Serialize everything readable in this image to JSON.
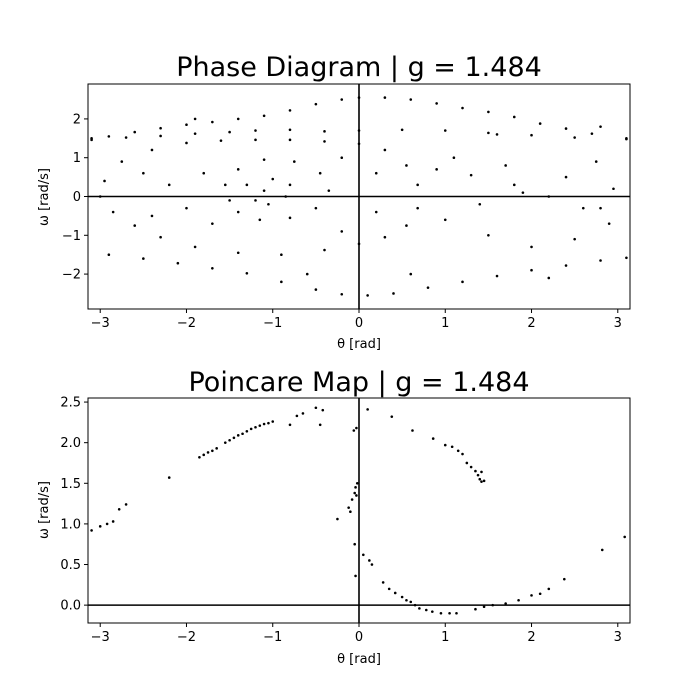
{
  "chart_data": [
    {
      "type": "scatter",
      "title": "Phase Diagram | g = 1.484",
      "xlabel": "θ [rad]",
      "ylabel": "ω [rad/s]",
      "xlim": [
        -3.1416,
        3.1416
      ],
      "ylim": [
        -2.9,
        2.9
      ],
      "x_ticks": [
        -3,
        -2,
        -1,
        0,
        1,
        2,
        3
      ],
      "x_tick_labels": [
        "−3",
        "−2",
        "−1",
        "0",
        "1",
        "2",
        "3"
      ],
      "y_ticks": [
        -2,
        -1,
        0,
        1,
        2
      ],
      "y_tick_labels": [
        "−2",
        "−1",
        "0",
        "1",
        "2"
      ],
      "grid": false,
      "reference_lines": {
        "x": 0,
        "y": 0
      },
      "marker_color": "#000000",
      "series": [
        {
          "points": [
            [
              -3.1,
              1.46
            ],
            [
              -2.9,
              1.55
            ],
            [
              -2.6,
              1.66
            ],
            [
              -2.3,
              1.76
            ],
            [
              -2.0,
              1.85
            ],
            [
              -1.7,
              1.92
            ],
            [
              -1.4,
              2.0
            ],
            [
              -1.1,
              2.08
            ],
            [
              -0.8,
              2.22
            ],
            [
              -0.5,
              2.38
            ],
            [
              -0.2,
              2.5
            ],
            [
              0.0,
              2.55
            ],
            [
              0.3,
              2.55
            ],
            [
              0.6,
              2.5
            ],
            [
              0.9,
              2.4
            ],
            [
              1.2,
              2.28
            ],
            [
              1.5,
              2.18
            ],
            [
              1.8,
              2.05
            ],
            [
              2.1,
              1.88
            ],
            [
              2.4,
              1.75
            ],
            [
              2.7,
              1.62
            ],
            [
              3.1,
              1.48
            ],
            [
              -3.1,
              1.5
            ],
            [
              -2.7,
              1.52
            ],
            [
              -2.3,
              1.56
            ],
            [
              -1.9,
              1.62
            ],
            [
              -1.5,
              1.66
            ],
            [
              -1.2,
              1.7
            ],
            [
              -0.8,
              1.72
            ],
            [
              -0.4,
              1.68
            ],
            [
              0.0,
              1.7
            ],
            [
              0.5,
              1.72
            ],
            [
              1.0,
              1.7
            ],
            [
              1.5,
              1.64
            ],
            [
              2.0,
              1.58
            ],
            [
              2.5,
              1.52
            ],
            [
              3.1,
              1.5
            ],
            [
              -2.95,
              0.4
            ],
            [
              -2.75,
              0.9
            ],
            [
              -2.4,
              1.2
            ],
            [
              -2.0,
              1.38
            ],
            [
              -1.6,
              1.44
            ],
            [
              -1.2,
              1.46
            ],
            [
              -0.8,
              1.46
            ],
            [
              -0.4,
              1.42
            ],
            [
              0.0,
              1.36
            ],
            [
              0.3,
              1.2
            ],
            [
              0.55,
              0.8
            ],
            [
              0.68,
              0.3
            ],
            [
              0.68,
              -0.3
            ],
            [
              0.55,
              -0.75
            ],
            [
              0.3,
              -1.05
            ],
            [
              0.0,
              -1.22
            ],
            [
              -0.4,
              -1.38
            ],
            [
              -0.9,
              -1.5
            ],
            [
              -1.4,
              -1.45
            ],
            [
              -1.9,
              -1.3
            ],
            [
              -2.3,
              -1.05
            ],
            [
              -2.6,
              -0.75
            ],
            [
              -2.85,
              -0.4
            ],
            [
              -3.0,
              0.0
            ],
            [
              -1.55,
              0.3
            ],
            [
              -1.4,
              0.7
            ],
            [
              -1.1,
              0.95
            ],
            [
              -0.75,
              0.9
            ],
            [
              -0.45,
              0.6
            ],
            [
              -0.35,
              0.15
            ],
            [
              -0.5,
              -0.3
            ],
            [
              -0.8,
              -0.55
            ],
            [
              -1.15,
              -0.6
            ],
            [
              -1.4,
              -0.4
            ],
            [
              -1.5,
              -0.1
            ],
            [
              -1.3,
              0.3
            ],
            [
              -1.0,
              0.45
            ],
            [
              -0.8,
              0.3
            ],
            [
              -0.85,
              0.0
            ],
            [
              -1.05,
              -0.2
            ],
            [
              -1.2,
              -0.1
            ],
            [
              -1.1,
              0.15
            ],
            [
              -2.9,
              -1.5
            ],
            [
              -2.5,
              -1.6
            ],
            [
              -2.1,
              -1.72
            ],
            [
              -1.7,
              -1.85
            ],
            [
              -1.3,
              -1.98
            ],
            [
              -0.9,
              -2.2
            ],
            [
              -0.5,
              -2.4
            ],
            [
              -0.2,
              -2.52
            ],
            [
              0.1,
              -2.55
            ],
            [
              0.4,
              -2.5
            ],
            [
              0.8,
              -2.35
            ],
            [
              1.2,
              -2.2
            ],
            [
              1.6,
              -2.05
            ],
            [
              2.0,
              -1.9
            ],
            [
              2.4,
              -1.78
            ],
            [
              2.8,
              -1.65
            ],
            [
              3.1,
              -1.58
            ],
            [
              0.9,
              0.7
            ],
            [
              1.3,
              0.55
            ],
            [
              1.8,
              0.3
            ],
            [
              2.2,
              0.0
            ],
            [
              2.6,
              -0.3
            ],
            [
              2.9,
              -0.7
            ],
            [
              2.5,
              -1.1
            ],
            [
              2.0,
              -1.3
            ],
            [
              1.5,
              -1.0
            ],
            [
              1.0,
              -0.6
            ],
            [
              1.4,
              -0.2
            ],
            [
              1.9,
              0.1
            ],
            [
              2.4,
              0.5
            ],
            [
              2.75,
              0.9
            ],
            [
              2.95,
              0.2
            ],
            [
              2.8,
              -0.3
            ],
            [
              1.7,
              0.8
            ],
            [
              1.1,
              1.0
            ],
            [
              -2.2,
              0.3
            ],
            [
              -2.0,
              -0.3
            ],
            [
              -1.8,
              0.6
            ],
            [
              -1.7,
              -0.7
            ],
            [
              -2.4,
              -0.5
            ],
            [
              -2.5,
              0.6
            ],
            [
              -0.2,
              -0.9
            ],
            [
              0.2,
              -0.4
            ],
            [
              0.2,
              0.6
            ],
            [
              -0.2,
              1.0
            ],
            [
              1.6,
              1.6
            ],
            [
              2.8,
              1.8
            ],
            [
              -0.6,
              -2.0
            ],
            [
              0.6,
              -2.0
            ],
            [
              -1.9,
              2.0
            ],
            [
              2.2,
              -2.1
            ]
          ]
        }
      ]
    },
    {
      "type": "scatter",
      "title": "Poincare Map | g = 1.484",
      "xlabel": "θ [rad]",
      "ylabel": "ω [rad/s]",
      "xlim": [
        -3.1416,
        3.1416
      ],
      "ylim": [
        -0.22,
        2.55
      ],
      "x_ticks": [
        -3,
        -2,
        -1,
        0,
        1,
        2,
        3
      ],
      "x_tick_labels": [
        "−3",
        "−2",
        "−1",
        "0",
        "1",
        "2",
        "3"
      ],
      "y_ticks": [
        0.0,
        0.5,
        1.0,
        1.5,
        2.0,
        2.5
      ],
      "y_tick_labels": [
        "0.0",
        "0.5",
        "1.0",
        "1.5",
        "2.0",
        "2.5"
      ],
      "grid": false,
      "reference_lines": {
        "x": 0,
        "y": 0
      },
      "marker_color": "#000000",
      "series": [
        {
          "points": [
            [
              -3.1,
              0.92
            ],
            [
              -3.0,
              0.97
            ],
            [
              -2.92,
              1.0
            ],
            [
              -2.85,
              1.03
            ],
            [
              -2.78,
              1.18
            ],
            [
              -2.7,
              1.24
            ],
            [
              -2.2,
              1.57
            ],
            [
              -1.85,
              1.82
            ],
            [
              -1.8,
              1.85
            ],
            [
              -1.75,
              1.88
            ],
            [
              -1.7,
              1.9
            ],
            [
              -1.65,
              1.93
            ],
            [
              -1.55,
              2.0
            ],
            [
              -1.5,
              2.03
            ],
            [
              -1.45,
              2.06
            ],
            [
              -1.4,
              2.09
            ],
            [
              -1.35,
              2.11
            ],
            [
              -1.3,
              2.14
            ],
            [
              -1.25,
              2.17
            ],
            [
              -1.2,
              2.19
            ],
            [
              -1.15,
              2.21
            ],
            [
              -1.1,
              2.23
            ],
            [
              -1.05,
              2.24
            ],
            [
              -1.0,
              2.26
            ],
            [
              -0.8,
              2.22
            ],
            [
              -0.72,
              2.33
            ],
            [
              -0.65,
              2.36
            ],
            [
              -0.5,
              2.43
            ],
            [
              -0.42,
              2.4
            ],
            [
              -0.45,
              2.22
            ],
            [
              -0.25,
              1.06
            ],
            [
              -0.12,
              1.2
            ],
            [
              -0.08,
              1.3
            ],
            [
              -0.05,
              1.38
            ],
            [
              -0.04,
              1.45
            ],
            [
              -0.02,
              1.5
            ],
            [
              -0.03,
              1.35
            ],
            [
              -0.06,
              2.15
            ],
            [
              -0.03,
              2.18
            ],
            [
              -0.05,
              0.75
            ],
            [
              -0.04,
              0.36
            ],
            [
              -0.1,
              1.15
            ],
            [
              0.1,
              2.41
            ],
            [
              0.38,
              2.32
            ],
            [
              0.62,
              2.15
            ],
            [
              0.86,
              2.05
            ],
            [
              1.0,
              1.97
            ],
            [
              1.08,
              1.95
            ],
            [
              1.15,
              1.9
            ],
            [
              1.2,
              1.86
            ],
            [
              1.25,
              1.75
            ],
            [
              1.3,
              1.7
            ],
            [
              1.35,
              1.65
            ],
            [
              1.38,
              1.6
            ],
            [
              1.4,
              1.55
            ],
            [
              1.42,
              1.52
            ],
            [
              1.45,
              1.53
            ],
            [
              1.42,
              1.64
            ],
            [
              0.05,
              0.62
            ],
            [
              0.12,
              0.55
            ],
            [
              0.15,
              0.5
            ],
            [
              0.28,
              0.28
            ],
            [
              0.35,
              0.2
            ],
            [
              0.42,
              0.15
            ],
            [
              0.5,
              0.1
            ],
            [
              0.55,
              0.06
            ],
            [
              0.6,
              0.04
            ],
            [
              0.65,
              0.0
            ],
            [
              0.7,
              -0.04
            ],
            [
              0.78,
              -0.06
            ],
            [
              0.85,
              -0.08
            ],
            [
              0.95,
              -0.1
            ],
            [
              1.05,
              -0.1
            ],
            [
              1.13,
              -0.1
            ],
            [
              1.35,
              -0.05
            ],
            [
              1.45,
              -0.02
            ],
            [
              1.55,
              0.0
            ],
            [
              1.7,
              0.02
            ],
            [
              1.85,
              0.06
            ],
            [
              2.0,
              0.12
            ],
            [
              2.1,
              0.14
            ],
            [
              2.2,
              0.2
            ],
            [
              2.38,
              0.32
            ],
            [
              2.82,
              0.68
            ],
            [
              3.08,
              0.84
            ]
          ]
        }
      ]
    }
  ]
}
